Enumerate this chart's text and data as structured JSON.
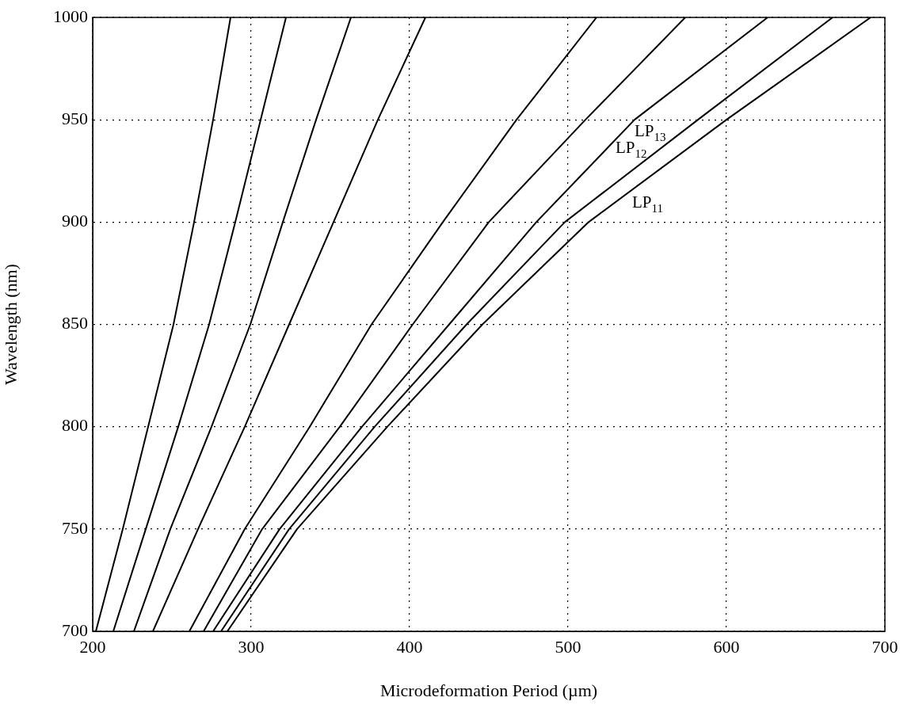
{
  "chart_data": {
    "type": "line",
    "xlabel": "Microdeformation Period (µm)",
    "ylabel": "Wavelength (nm)",
    "xlim": [
      200,
      700
    ],
    "xticks": [
      200,
      300,
      400,
      500,
      600,
      700
    ],
    "ylim": [
      700,
      1000
    ],
    "yticks": [
      700,
      750,
      800,
      850,
      900,
      950,
      1000
    ],
    "grid": true,
    "legend": false,
    "marker": "none",
    "line_style": "solid",
    "series": [
      {
        "color": "#000000",
        "x": [
          202,
          219,
          235,
          251,
          264,
          276,
          287
        ],
        "values": [
          700,
          750,
          800,
          850,
          900,
          950,
          1000
        ]
      },
      {
        "color": "#000000",
        "x": [
          213,
          233.5,
          254,
          273.5,
          290,
          306,
          322
        ],
        "values": [
          700,
          750,
          800,
          850,
          900,
          950,
          1000
        ]
      },
      {
        "color": "#000000",
        "x": [
          226,
          249,
          275,
          299.5,
          320,
          341,
          363
        ],
        "values": [
          700,
          750,
          800,
          850,
          900,
          950,
          1000
        ]
      },
      {
        "color": "#000000",
        "x": [
          238,
          266.5,
          296,
          324,
          352,
          380,
          410
        ],
        "values": [
          700,
          750,
          800,
          850,
          900,
          950,
          1000
        ]
      },
      {
        "color": "#000000",
        "x": [
          261,
          296,
          337,
          376,
          421,
          467.5,
          518
        ],
        "values": [
          700,
          750,
          800,
          850,
          900,
          950,
          1000
        ]
      },
      {
        "color": "#000000",
        "x": [
          270,
          307,
          356,
          402,
          450,
          511,
          574
        ],
        "values": [
          700,
          750,
          800,
          850,
          900,
          950,
          1000
        ]
      },
      {
        "name": "LP$_{13}$",
        "color": "#000000",
        "x": [
          276,
          318,
          370,
          425,
          480,
          542,
          626
        ],
        "values": [
          700,
          750,
          800,
          850,
          900,
          950,
          1000
        ]
      },
      {
        "name": "LP$_{12}$",
        "color": "#000000",
        "x": [
          281,
          324,
          378,
          436,
          498,
          582,
          667
        ],
        "values": [
          700,
          750,
          800,
          850,
          900,
          950,
          1000
        ]
      },
      {
        "name": "LP$_{11}$",
        "color": "#000000",
        "x": [
          285,
          329,
          386,
          446,
          513,
          600,
          691
        ],
        "values": [
          700,
          750,
          800,
          850,
          900,
          950,
          1000
        ]
      }
    ]
  }
}
